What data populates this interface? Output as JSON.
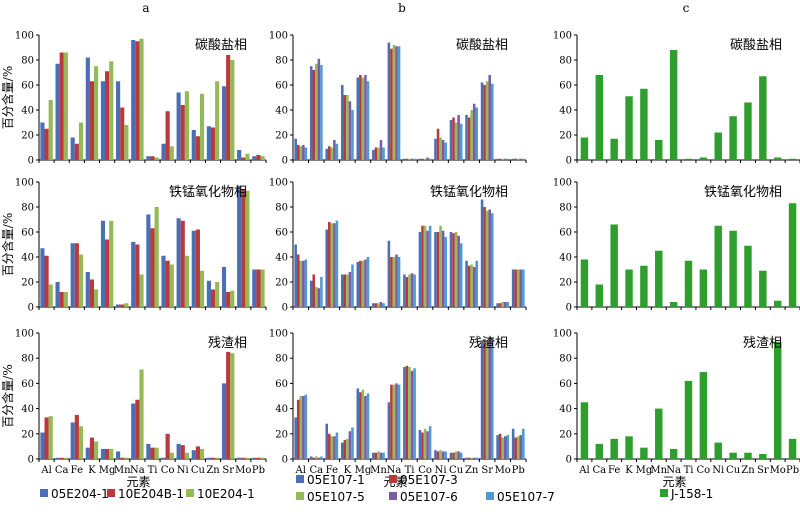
{
  "figure": {
    "column_labels": [
      "a",
      "b",
      "c"
    ],
    "y_axis_label": "百分含量/%",
    "x_axis_label": "元素"
  },
  "chart_data": [
    {
      "type": "bar",
      "column": "a",
      "categories": [
        "Al",
        "Ca",
        "Fe",
        "K",
        "Mg",
        "Mn",
        "Na",
        "Ti",
        "Co",
        "Ni",
        "Cu",
        "Zn",
        "Sr",
        "Mo",
        "Pb"
      ],
      "ylim": [
        0,
        100
      ],
      "yticks": [
        0,
        20,
        40,
        60,
        80,
        100
      ],
      "legend_position": "bottom",
      "colors": [
        "#4a6fb5",
        "#b83a3a",
        "#95b957"
      ],
      "series_names": [
        "05E204-1",
        "10E204B-1",
        "10E204-1"
      ],
      "panels": [
        {
          "title": "碳酸盐相",
          "series": [
            {
              "name": "05E204-1",
              "values": [
                30,
                77,
                18,
                82,
                63,
                63,
                96,
                3,
                13,
                54,
                24,
                27,
                59,
                8,
                3
              ]
            },
            {
              "name": "10E204B-1",
              "values": [
                25,
                86,
                13,
                63,
                71,
                42,
                95,
                3,
                39,
                44,
                19,
                26,
                84,
                2,
                4
              ]
            },
            {
              "name": "10E204-1",
              "values": [
                48,
                86,
                30,
                75,
                79,
                28,
                97,
                2,
                11,
                55,
                53,
                63,
                80,
                5,
                3
              ]
            }
          ]
        },
        {
          "title": "铁锰氧化物相",
          "series": [
            {
              "name": "05E204-1",
              "values": [
                47,
                20,
                51,
                28,
                69,
                2,
                52,
                74,
                41,
                71,
                61,
                21,
                32,
                97,
                30
              ]
            },
            {
              "name": "10E204B-1",
              "values": [
                41,
                12,
                51,
                22,
                54,
                2,
                50,
                63,
                37,
                69,
                62,
                14,
                12,
                94,
                30
              ]
            },
            {
              "name": "10E204-1",
              "values": [
                18,
                12,
                42,
                14,
                69,
                3,
                26,
                80,
                34,
                41,
                29,
                20,
                13,
                93,
                30
              ]
            }
          ]
        },
        {
          "title": "残渣相",
          "series": [
            {
              "name": "05E204-1",
              "values": [
                21,
                1,
                29,
                9,
                8,
                6,
                44,
                12,
                1,
                12,
                7,
                1,
                60,
                1,
                1
              ]
            },
            {
              "name": "10E204B-1",
              "values": [
                33,
                1,
                35,
                17,
                8,
                1,
                47,
                9,
                20,
                11,
                10,
                1,
                85,
                1,
                1
              ]
            },
            {
              "name": "10E204-1",
              "values": [
                34,
                1,
                26,
                14,
                8,
                1,
                71,
                9,
                5,
                5,
                8,
                1,
                84,
                1,
                1
              ]
            }
          ]
        }
      ]
    },
    {
      "type": "bar",
      "column": "b",
      "categories": [
        "Al",
        "Ca",
        "Fe",
        "K",
        "Mg",
        "Mn",
        "Na",
        "Ti",
        "Co",
        "Ni",
        "Cu",
        "Zn",
        "Sr",
        "Mo",
        "Pb"
      ],
      "ylim": [
        0,
        100
      ],
      "yticks": [
        0,
        20,
        40,
        60,
        80,
        100
      ],
      "legend_position": "bottom",
      "colors": [
        "#4a6fb5",
        "#b83a3a",
        "#95b957",
        "#7a5ca8",
        "#4f9ad0"
      ],
      "series_names": [
        "05E107-1",
        "05E107-3",
        "05E107-5",
        "05E107-6",
        "05E107-7"
      ],
      "panels": [
        {
          "title": "碳酸盐相",
          "series": [
            {
              "name": "05E107-1",
              "values": [
                17,
                75,
                9,
                60,
                66,
                8,
                94,
                1,
                1,
                17,
                32,
                36,
                62,
                1,
                1
              ]
            },
            {
              "name": "05E107-3",
              "values": [
                12,
                72,
                11,
                52,
                68,
                10,
                89,
                1,
                1,
                25,
                34,
                34,
                60,
                1,
                1
              ]
            },
            {
              "name": "05E107-5",
              "values": [
                11,
                77,
                10,
                52,
                66,
                10,
                92,
                1,
                1,
                18,
                30,
                40,
                63,
                1,
                1
              ]
            },
            {
              "name": "05E107-6",
              "values": [
                12,
                81,
                16,
                47,
                68,
                16,
                91,
                1,
                2,
                16,
                36,
                45,
                68,
                1,
                1
              ]
            },
            {
              "name": "05E107-7",
              "values": [
                10,
                76,
                13,
                40,
                63,
                10,
                91,
                1,
                1,
                14,
                29,
                42,
                61,
                1,
                1
              ]
            }
          ]
        },
        {
          "title": "铁锰氧化物相",
          "series": [
            {
              "name": "05E107-1",
              "values": [
                50,
                21,
                62,
                26,
                36,
                3,
                53,
                26,
                60,
                60,
                60,
                37,
                86,
                3,
                30
              ]
            },
            {
              "name": "05E107-3",
              "values": [
                42,
                26,
                68,
                26,
                37,
                3,
                40,
                24,
                65,
                60,
                59,
                33,
                80,
                3,
                30
              ]
            },
            {
              "name": "05E107-5",
              "values": [
                37,
                16,
                67,
                26,
                37,
                3,
                40,
                26,
                65,
                65,
                60,
                34,
                77,
                4,
                30
              ]
            },
            {
              "name": "05E107-6",
              "values": [
                37,
                15,
                67,
                28,
                38,
                4,
                42,
                27,
                61,
                61,
                57,
                32,
                78,
                4,
                30
              ]
            },
            {
              "name": "05E107-7",
              "values": [
                38,
                24,
                69,
                34,
                40,
                3,
                40,
                26,
                65,
                56,
                51,
                37,
                75,
                4,
                30
              ]
            }
          ]
        },
        {
          "title": "残渣相",
          "series": [
            {
              "name": "05E107-1",
              "values": [
                33,
                2,
                28,
                13,
                56,
                5,
                45,
                73,
                23,
                7,
                5,
                1,
                94,
                19,
                24
              ]
            },
            {
              "name": "05E107-3",
              "values": [
                47,
                1,
                20,
                15,
                53,
                5,
                59,
                74,
                21,
                6,
                5,
                1,
                95,
                20,
                17
              ]
            },
            {
              "name": "05E107-5",
              "values": [
                50,
                2,
                18,
                16,
                55,
                6,
                59,
                73,
                24,
                7,
                6,
                1,
                94,
                17,
                18
              ]
            },
            {
              "name": "05E107-6",
              "values": [
                50,
                1,
                18,
                22,
                50,
                5,
                60,
                70,
                22,
                6,
                6,
                1,
                95,
                18,
                19
              ]
            },
            {
              "name": "05E107-7",
              "values": [
                51,
                2,
                21,
                25,
                52,
                5,
                59,
                72,
                26,
                6,
                5,
                1,
                96,
                19,
                24
              ]
            }
          ]
        }
      ]
    },
    {
      "type": "bar",
      "column": "c",
      "categories": [
        "Al",
        "Ca",
        "Fe",
        "K",
        "Mg",
        "Mn",
        "Na",
        "Ti",
        "Co",
        "Ni",
        "Cu",
        "Zn",
        "Sr",
        "Mo",
        "Pb"
      ],
      "ylim": [
        0,
        100
      ],
      "yticks": [
        0,
        20,
        40,
        60,
        80,
        100
      ],
      "legend_position": "bottom",
      "colors": [
        "#2e9e2e"
      ],
      "series_names": [
        "J-158-1"
      ],
      "panels": [
        {
          "title": "碳酸盐相",
          "series": [
            {
              "name": "J-158-1",
              "values": [
                18,
                68,
                17,
                51,
                57,
                16,
                88,
                1,
                2,
                22,
                35,
                46,
                67,
                2,
                1
              ]
            }
          ]
        },
        {
          "title": "铁锰氧化物相",
          "series": [
            {
              "name": "J-158-1",
              "values": [
                38,
                18,
                66,
                30,
                33,
                45,
                4,
                37,
                30,
                65,
                61,
                49,
                29,
                5,
                83
              ]
            }
          ]
        },
        {
          "title": "残渣相",
          "series": [
            {
              "name": "J-158-1",
              "values": [
                45,
                12,
                16,
                18,
                9,
                40,
                8,
                62,
                69,
                13,
                5,
                5,
                4,
                93,
                16
              ]
            }
          ]
        }
      ]
    }
  ]
}
